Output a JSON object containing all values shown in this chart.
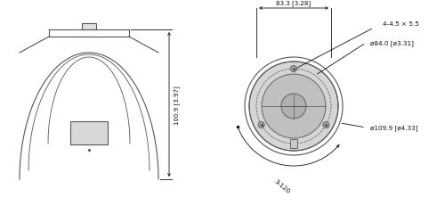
{
  "bg_color": "#ffffff",
  "line_color": "#555555",
  "text_color": "#111111",
  "annotations": {
    "height_label": "100.9 [3.97]",
    "width_label": "83.3 [3.28]",
    "holes_label": "4-4.5 × 5.5",
    "d84_label": "ø84.0 [ø3.31]",
    "d109_label": "ø109.9 [ø4.33]",
    "arc_label": "3-120"
  }
}
